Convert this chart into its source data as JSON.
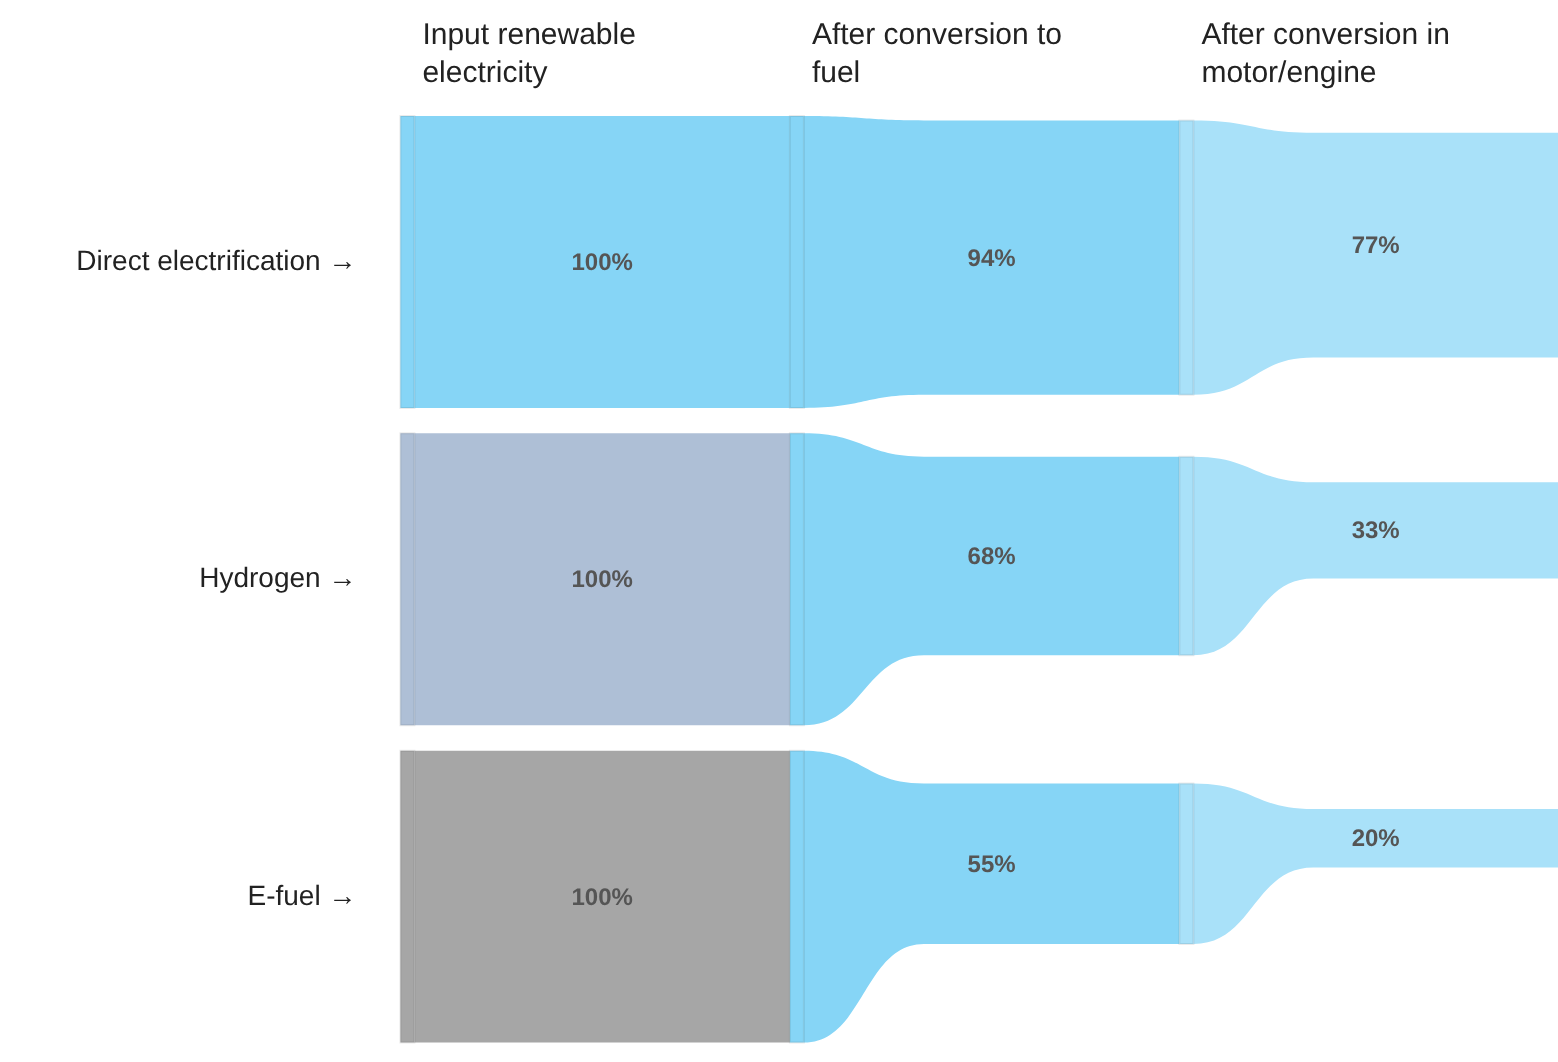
{
  "chart_data": {
    "type": "other",
    "categories": [
      "Input renewable electricity",
      "After conversion to fuel",
      "After conversion in motor/engine"
    ],
    "series": [
      {
        "name": "Direct electrification →",
        "colors": [
          "#86d5f6",
          "#86d5f6",
          "#a9e1f9"
        ],
        "values": [
          100,
          94,
          77
        ],
        "value_labels": [
          "100%",
          "94%",
          "77%"
        ]
      },
      {
        "name": "Hydrogen →",
        "colors": [
          "#aebfd6",
          "#86d5f6",
          "#a9e1f9"
        ],
        "values": [
          100,
          68,
          33
        ],
        "value_labels": [
          "100%",
          "68%",
          "33%"
        ]
      },
      {
        "name": "E-fuel →",
        "colors": [
          "#a6a6a6",
          "#86d5f6",
          "#a9e1f9"
        ],
        "values": [
          100,
          55,
          20
        ],
        "value_labels": [
          "100%",
          "55%",
          "20%"
        ]
      }
    ]
  }
}
